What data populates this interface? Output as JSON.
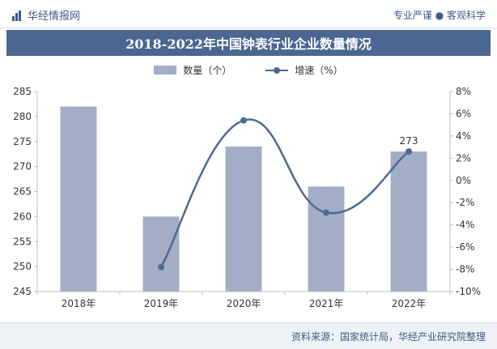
{
  "header": {
    "brand": "华经情报网",
    "tagline": "专业严谨 ● 客观科学"
  },
  "footer": {
    "source": "资料来源：国家统计局，华经产业研究院整理"
  },
  "colors": {
    "bar": "#a3adc5",
    "line": "#4d6a93",
    "title_bg": "#4a6691",
    "brand": "#3e5a85"
  },
  "chart_data": {
    "type": "bar",
    "title": "2018-2022年中国钟表行业企业数量情况",
    "categories": [
      "2018年",
      "2019年",
      "2020年",
      "2021年",
      "2022年"
    ],
    "series": [
      {
        "name": "数量（个）",
        "type": "bar",
        "axis": "left",
        "values": [
          282,
          260,
          274,
          266,
          273
        ]
      },
      {
        "name": "增速（%）",
        "type": "line",
        "axis": "right",
        "values": [
          null,
          -7.8,
          5.4,
          -2.9,
          2.6
        ]
      }
    ],
    "y_left": {
      "min": 245,
      "max": 285,
      "step": 5
    },
    "y_right": {
      "min": -10,
      "max": 8,
      "step": 2,
      "suffix": "%"
    },
    "data_labels": [
      {
        "category": "2022年",
        "text": "273"
      }
    ],
    "legend_position": "top-center",
    "grid": false
  }
}
